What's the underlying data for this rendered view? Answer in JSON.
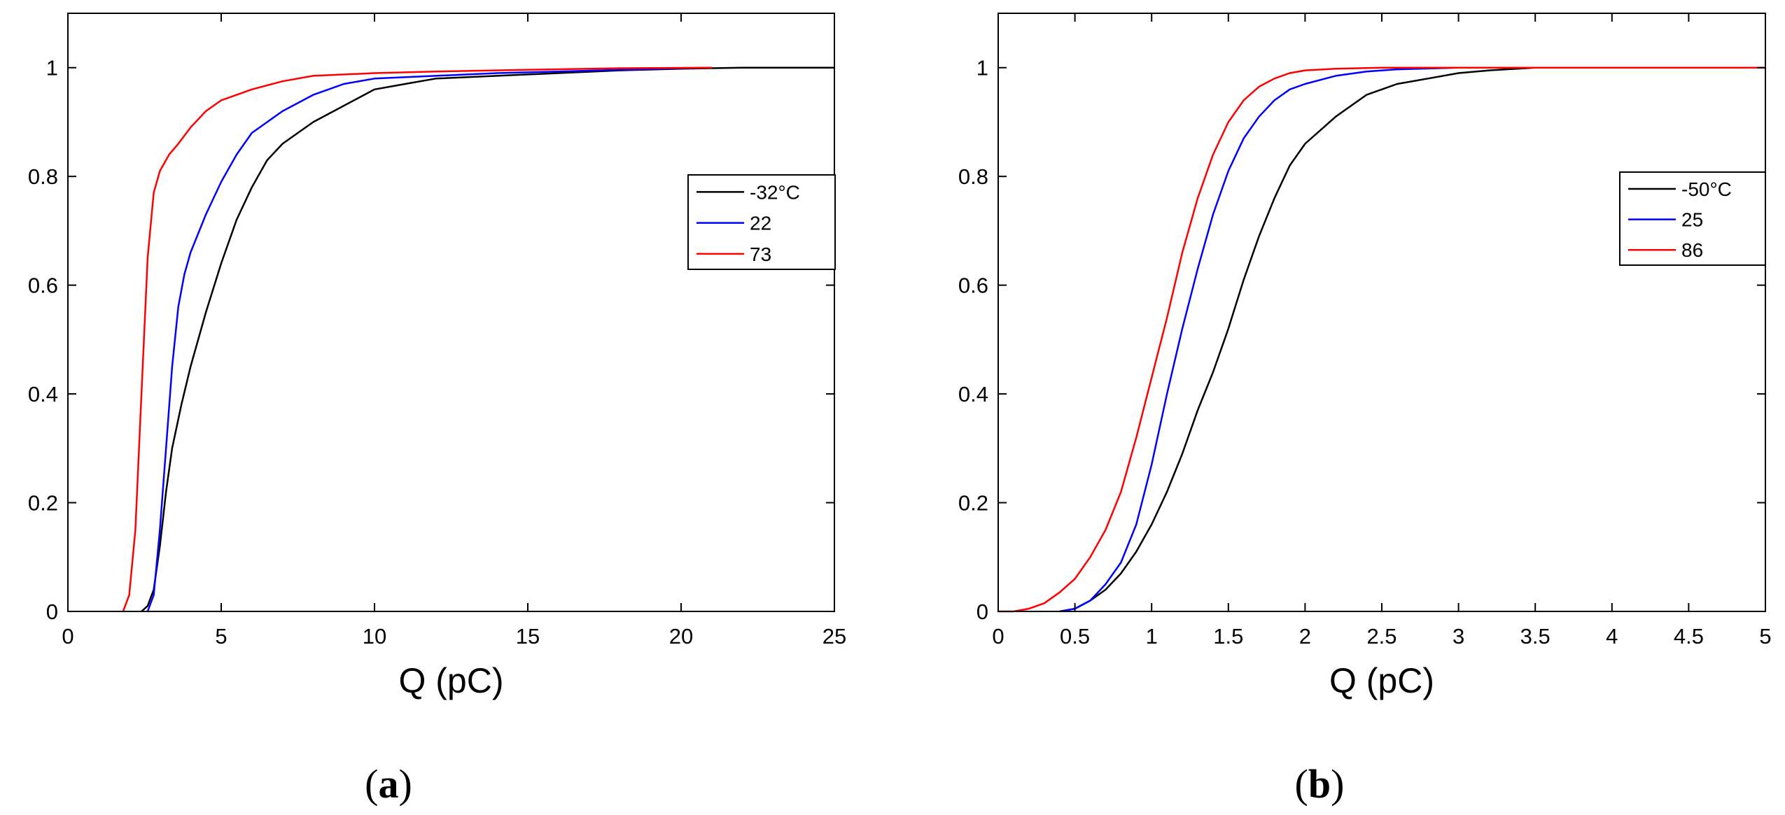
{
  "chart_data": [
    {
      "type": "line",
      "panel_label": "a",
      "title": "",
      "xlabel": "Q (pC)",
      "ylabel": "",
      "xlim": [
        0,
        25
      ],
      "ylim": [
        0,
        1.1
      ],
      "xticks": [
        0,
        5,
        10,
        15,
        20,
        25
      ],
      "yticks": [
        0,
        0.2,
        0.4,
        0.6,
        0.8,
        1
      ],
      "xtick_labels": [
        "0",
        "5",
        "10",
        "15",
        "20",
        "25"
      ],
      "ytick_labels": [
        "0",
        "0.2",
        "0.4",
        "0.6",
        "0.8",
        "1"
      ],
      "grid": false,
      "legend_position": "right",
      "legend_extends_to_axis_edge": true,
      "series": [
        {
          "name": "-32°C",
          "color": "#000000",
          "x": [
            2.4,
            2.6,
            2.8,
            3.0,
            3.2,
            3.4,
            3.7,
            4.0,
            4.5,
            5.0,
            5.5,
            6.0,
            6.5,
            7.0,
            7.5,
            8.0,
            9.0,
            10.0,
            11.0,
            12.0,
            14.0,
            16.0,
            18.0,
            20.0,
            22.0,
            25.0
          ],
          "y": [
            0.0,
            0.01,
            0.04,
            0.12,
            0.22,
            0.3,
            0.38,
            0.45,
            0.55,
            0.64,
            0.72,
            0.78,
            0.83,
            0.86,
            0.88,
            0.9,
            0.93,
            0.96,
            0.97,
            0.98,
            0.985,
            0.99,
            0.995,
            0.998,
            1.0,
            1.0
          ]
        },
        {
          "name": "22",
          "color": "#0000ff",
          "x": [
            2.6,
            2.8,
            3.0,
            3.2,
            3.4,
            3.6,
            3.8,
            4.0,
            4.5,
            5.0,
            5.5,
            6.0,
            7.0,
            8.0,
            9.0,
            10.0,
            12.0,
            14.0,
            16.0,
            18.0,
            20.0,
            21.0
          ],
          "y": [
            0.0,
            0.03,
            0.15,
            0.3,
            0.45,
            0.56,
            0.62,
            0.66,
            0.73,
            0.79,
            0.84,
            0.88,
            0.92,
            0.95,
            0.97,
            0.98,
            0.985,
            0.99,
            0.993,
            0.996,
            0.999,
            1.0
          ]
        },
        {
          "name": "73",
          "color": "#ff0000",
          "x": [
            1.8,
            2.0,
            2.2,
            2.4,
            2.6,
            2.8,
            3.0,
            3.3,
            3.6,
            4.0,
            4.5,
            5.0,
            6.0,
            7.0,
            8.0,
            10.0,
            12.0,
            15.0,
            18.0,
            21.0
          ],
          "y": [
            0.0,
            0.03,
            0.15,
            0.4,
            0.65,
            0.77,
            0.81,
            0.84,
            0.86,
            0.89,
            0.92,
            0.94,
            0.96,
            0.975,
            0.985,
            0.99,
            0.993,
            0.996,
            0.999,
            1.0
          ]
        }
      ]
    },
    {
      "type": "line",
      "panel_label": "b",
      "title": "",
      "xlabel": "Q (pC)",
      "ylabel": "",
      "xlim": [
        0,
        5
      ],
      "ylim": [
        0,
        1.1
      ],
      "xticks": [
        0,
        0.5,
        1,
        1.5,
        2,
        2.5,
        3,
        3.5,
        4,
        4.5,
        5
      ],
      "yticks": [
        0,
        0.2,
        0.4,
        0.6,
        0.8,
        1
      ],
      "xtick_labels": [
        "0",
        "0.5",
        "1",
        "1.5",
        "2",
        "2.5",
        "3",
        "3.5",
        "4",
        "4.5",
        "5"
      ],
      "ytick_labels": [
        "0",
        "0.2",
        "0.4",
        "0.6",
        "0.8",
        "1"
      ],
      "grid": false,
      "legend_position": "right",
      "legend_extends_to_axis_edge": false,
      "series": [
        {
          "name": "-50°C",
          "color": "#000000",
          "x": [
            0.4,
            0.5,
            0.6,
            0.7,
            0.8,
            0.9,
            1.0,
            1.1,
            1.2,
            1.3,
            1.4,
            1.5,
            1.6,
            1.7,
            1.8,
            1.9,
            2.0,
            2.2,
            2.4,
            2.6,
            2.8,
            3.0,
            3.2,
            3.5,
            4.0,
            5.0
          ],
          "y": [
            0.0,
            0.005,
            0.02,
            0.04,
            0.07,
            0.11,
            0.16,
            0.22,
            0.29,
            0.37,
            0.44,
            0.52,
            0.61,
            0.69,
            0.76,
            0.82,
            0.86,
            0.91,
            0.95,
            0.97,
            0.98,
            0.99,
            0.995,
            1.0,
            1.0,
            1.0
          ]
        },
        {
          "name": "25",
          "color": "#0000ff",
          "x": [
            0.4,
            0.5,
            0.6,
            0.7,
            0.8,
            0.9,
            1.0,
            1.1,
            1.2,
            1.3,
            1.4,
            1.5,
            1.6,
            1.7,
            1.8,
            1.9,
            2.0,
            2.2,
            2.4,
            2.6,
            3.0,
            3.5,
            4.0,
            5.0
          ],
          "y": [
            0.0,
            0.005,
            0.02,
            0.05,
            0.09,
            0.16,
            0.27,
            0.4,
            0.52,
            0.63,
            0.73,
            0.81,
            0.87,
            0.91,
            0.94,
            0.96,
            0.97,
            0.985,
            0.993,
            0.997,
            1.0,
            1.0,
            1.0,
            1.0
          ]
        },
        {
          "name": "86",
          "color": "#ff0000",
          "x": [
            0.0,
            0.1,
            0.2,
            0.3,
            0.4,
            0.5,
            0.6,
            0.7,
            0.8,
            0.9,
            1.0,
            1.1,
            1.2,
            1.3,
            1.4,
            1.5,
            1.6,
            1.7,
            1.8,
            1.9,
            2.0,
            2.2,
            2.5,
            3.0,
            4.0,
            5.0
          ],
          "y": [
            0.0,
            0.0,
            0.005,
            0.015,
            0.035,
            0.06,
            0.1,
            0.15,
            0.22,
            0.32,
            0.43,
            0.54,
            0.66,
            0.76,
            0.84,
            0.9,
            0.94,
            0.965,
            0.98,
            0.99,
            0.995,
            0.998,
            1.0,
            1.0,
            1.0,
            1.0
          ]
        }
      ]
    }
  ]
}
